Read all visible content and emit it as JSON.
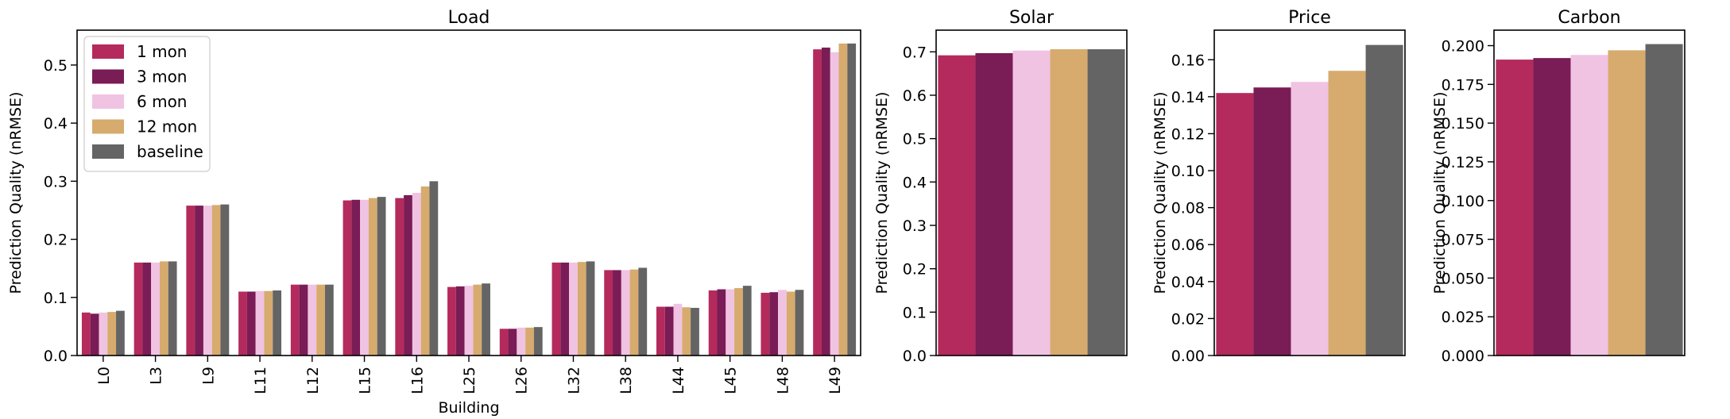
{
  "colors": {
    "1 mon": "#b42a5c",
    "3 mon": "#7a1c55",
    "6 mon": "#f0c3e3",
    "12 mon": "#d6ab6d",
    "baseline": "#646464"
  },
  "chart_data": [
    {
      "type": "bar",
      "title": "Load",
      "xlabel": "Building",
      "ylabel": "Prediction Quality (nRMSE)",
      "ylim": [
        0,
        0.56
      ],
      "yticks": [
        "0.0",
        "0.1",
        "0.2",
        "0.3",
        "0.4",
        "0.5"
      ],
      "legend": {
        "position": "upper-left",
        "entries": [
          "1 mon",
          "3 mon",
          "6 mon",
          "12 mon",
          "baseline"
        ]
      },
      "categories": [
        "L0",
        "L3",
        "L9",
        "L11",
        "L12",
        "L15",
        "L16",
        "L25",
        "L26",
        "L32",
        "L38",
        "L44",
        "L45",
        "L48",
        "L49"
      ],
      "series": [
        {
          "name": "1 mon",
          "values": [
            0.074,
            0.16,
            0.258,
            0.11,
            0.122,
            0.267,
            0.271,
            0.118,
            0.046,
            0.16,
            0.147,
            0.084,
            0.112,
            0.108,
            0.527
          ]
        },
        {
          "name": "3 mon",
          "values": [
            0.072,
            0.16,
            0.258,
            0.11,
            0.122,
            0.268,
            0.276,
            0.119,
            0.046,
            0.16,
            0.147,
            0.084,
            0.114,
            0.109,
            0.53
          ]
        },
        {
          "name": "6 mon",
          "values": [
            0.074,
            0.16,
            0.258,
            0.111,
            0.122,
            0.268,
            0.28,
            0.12,
            0.048,
            0.16,
            0.147,
            0.089,
            0.114,
            0.113,
            0.522
          ]
        },
        {
          "name": "12 mon",
          "values": [
            0.075,
            0.162,
            0.259,
            0.111,
            0.122,
            0.271,
            0.291,
            0.122,
            0.048,
            0.161,
            0.148,
            0.083,
            0.116,
            0.11,
            0.537
          ]
        },
        {
          "name": "baseline",
          "values": [
            0.077,
            0.162,
            0.26,
            0.112,
            0.122,
            0.273,
            0.3,
            0.124,
            0.049,
            0.162,
            0.151,
            0.082,
            0.12,
            0.113,
            0.537
          ]
        }
      ]
    },
    {
      "type": "bar",
      "title": "Solar",
      "xlabel": "",
      "ylabel": "Prediction Quality (nRMSE)",
      "ylim": [
        0,
        0.75
      ],
      "yticks": [
        "0.0",
        "0.1",
        "0.2",
        "0.3",
        "0.4",
        "0.5",
        "0.6",
        "0.7"
      ],
      "categories": [
        ""
      ],
      "series": [
        {
          "name": "1 mon",
          "values": [
            0.692
          ]
        },
        {
          "name": "3 mon",
          "values": [
            0.697
          ]
        },
        {
          "name": "6 mon",
          "values": [
            0.703
          ]
        },
        {
          "name": "12 mon",
          "values": [
            0.706
          ]
        },
        {
          "name": "baseline",
          "values": [
            0.706
          ]
        }
      ]
    },
    {
      "type": "bar",
      "title": "Price",
      "xlabel": "",
      "ylabel": "Prediction Quality (nRMSE)",
      "ylim": [
        0,
        0.176
      ],
      "yticks": [
        "0.00",
        "0.02",
        "0.04",
        "0.06",
        "0.08",
        "0.10",
        "0.12",
        "0.14",
        "0.16"
      ],
      "categories": [
        ""
      ],
      "series": [
        {
          "name": "1 mon",
          "values": [
            0.142
          ]
        },
        {
          "name": "3 mon",
          "values": [
            0.145
          ]
        },
        {
          "name": "6 mon",
          "values": [
            0.148
          ]
        },
        {
          "name": "12 mon",
          "values": [
            0.154
          ]
        },
        {
          "name": "baseline",
          "values": [
            0.168
          ]
        }
      ]
    },
    {
      "type": "bar",
      "title": "Carbon",
      "xlabel": "",
      "ylabel": "Prediction Quality (nRMSE)",
      "ylim": [
        0,
        0.21
      ],
      "yticks": [
        "0.000",
        "0.025",
        "0.050",
        "0.075",
        "0.100",
        "0.125",
        "0.150",
        "0.175",
        "0.200"
      ],
      "categories": [
        ""
      ],
      "series": [
        {
          "name": "1 mon",
          "values": [
            0.191
          ]
        },
        {
          "name": "3 mon",
          "values": [
            0.192
          ]
        },
        {
          "name": "6 mon",
          "values": [
            0.194
          ]
        },
        {
          "name": "12 mon",
          "values": [
            0.197
          ]
        },
        {
          "name": "baseline",
          "values": [
            0.201
          ]
        }
      ]
    }
  ]
}
